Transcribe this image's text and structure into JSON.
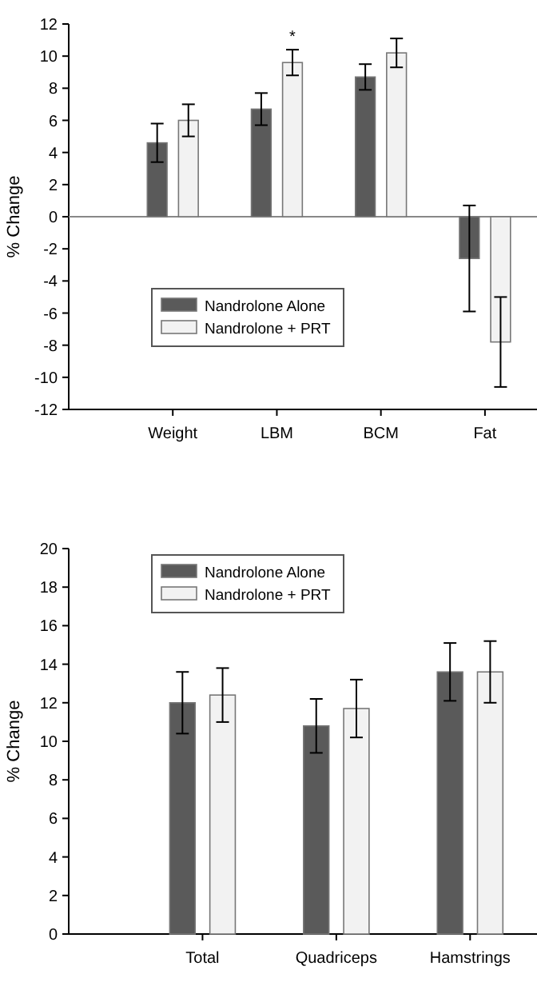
{
  "chart_data": [
    {
      "type": "bar",
      "ylabel": "% Change",
      "categories": [
        "Weight",
        "LBM",
        "BCM",
        "Fat"
      ],
      "series": [
        {
          "name": "Nandrolone Alone",
          "color": "#5a5a5a",
          "values": [
            4.6,
            6.7,
            8.7,
            -2.6
          ],
          "errors": [
            1.2,
            1.0,
            0.8,
            3.3
          ]
        },
        {
          "name": "Nandrolone + PRT",
          "color": "#f2f2f2",
          "values": [
            6.0,
            9.6,
            10.2,
            -7.8
          ],
          "errors": [
            1.0,
            0.8,
            0.9,
            2.8
          ]
        }
      ],
      "ylim": [
        -12,
        12
      ],
      "yticks": [
        -12,
        -10,
        -8,
        -6,
        -4,
        -2,
        0,
        2,
        4,
        6,
        8,
        10,
        12
      ],
      "legend": "center left",
      "annotations": [
        "*"
      ]
    },
    {
      "type": "bar",
      "ylabel": "% Change",
      "categories": [
        "Total",
        "Quadriceps",
        "Hamstrings"
      ],
      "series": [
        {
          "name": "Nandrolone Alone",
          "color": "#5a5a5a",
          "values": [
            12.0,
            10.8,
            13.6
          ],
          "errors": [
            1.6,
            1.4,
            1.5
          ]
        },
        {
          "name": "Nandrolone + PRT",
          "color": "#f2f2f2",
          "values": [
            12.4,
            11.7,
            13.6
          ],
          "errors": [
            1.4,
            1.5,
            1.6
          ]
        }
      ],
      "ylim": [
        0,
        20
      ],
      "yticks": [
        0,
        2,
        4,
        6,
        8,
        10,
        12,
        14,
        16,
        18,
        20
      ],
      "legend": "top left"
    }
  ]
}
